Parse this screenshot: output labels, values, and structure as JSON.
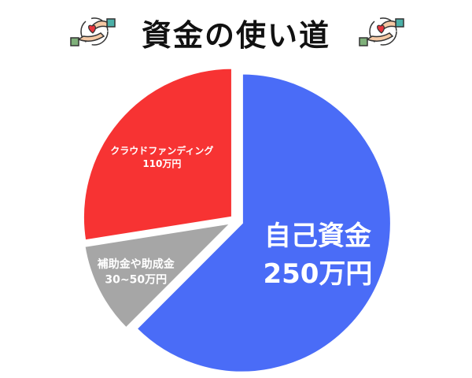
{
  "chart_data": {
    "type": "pie",
    "title": "資金の使い道",
    "slices": [
      {
        "label": "自己資金",
        "value_label": "250万円",
        "value": 250,
        "color": "#4a6cf7"
      },
      {
        "label": "補助金や助成金",
        "value_label": "30~50万円",
        "value": 40,
        "value_range": [
          30,
          50
        ],
        "color": "#a6a6a6"
      },
      {
        "label": "クラウドファンディング",
        "value_label": "110万円",
        "value": 110,
        "color": "#f73333"
      }
    ],
    "start": "12 o'clock",
    "direction": "clockwise",
    "legend": "none",
    "unit": "万円"
  },
  "decorations": {
    "icons": [
      "hand-giving-heart-icon",
      "hand-giving-heart-icon"
    ]
  }
}
